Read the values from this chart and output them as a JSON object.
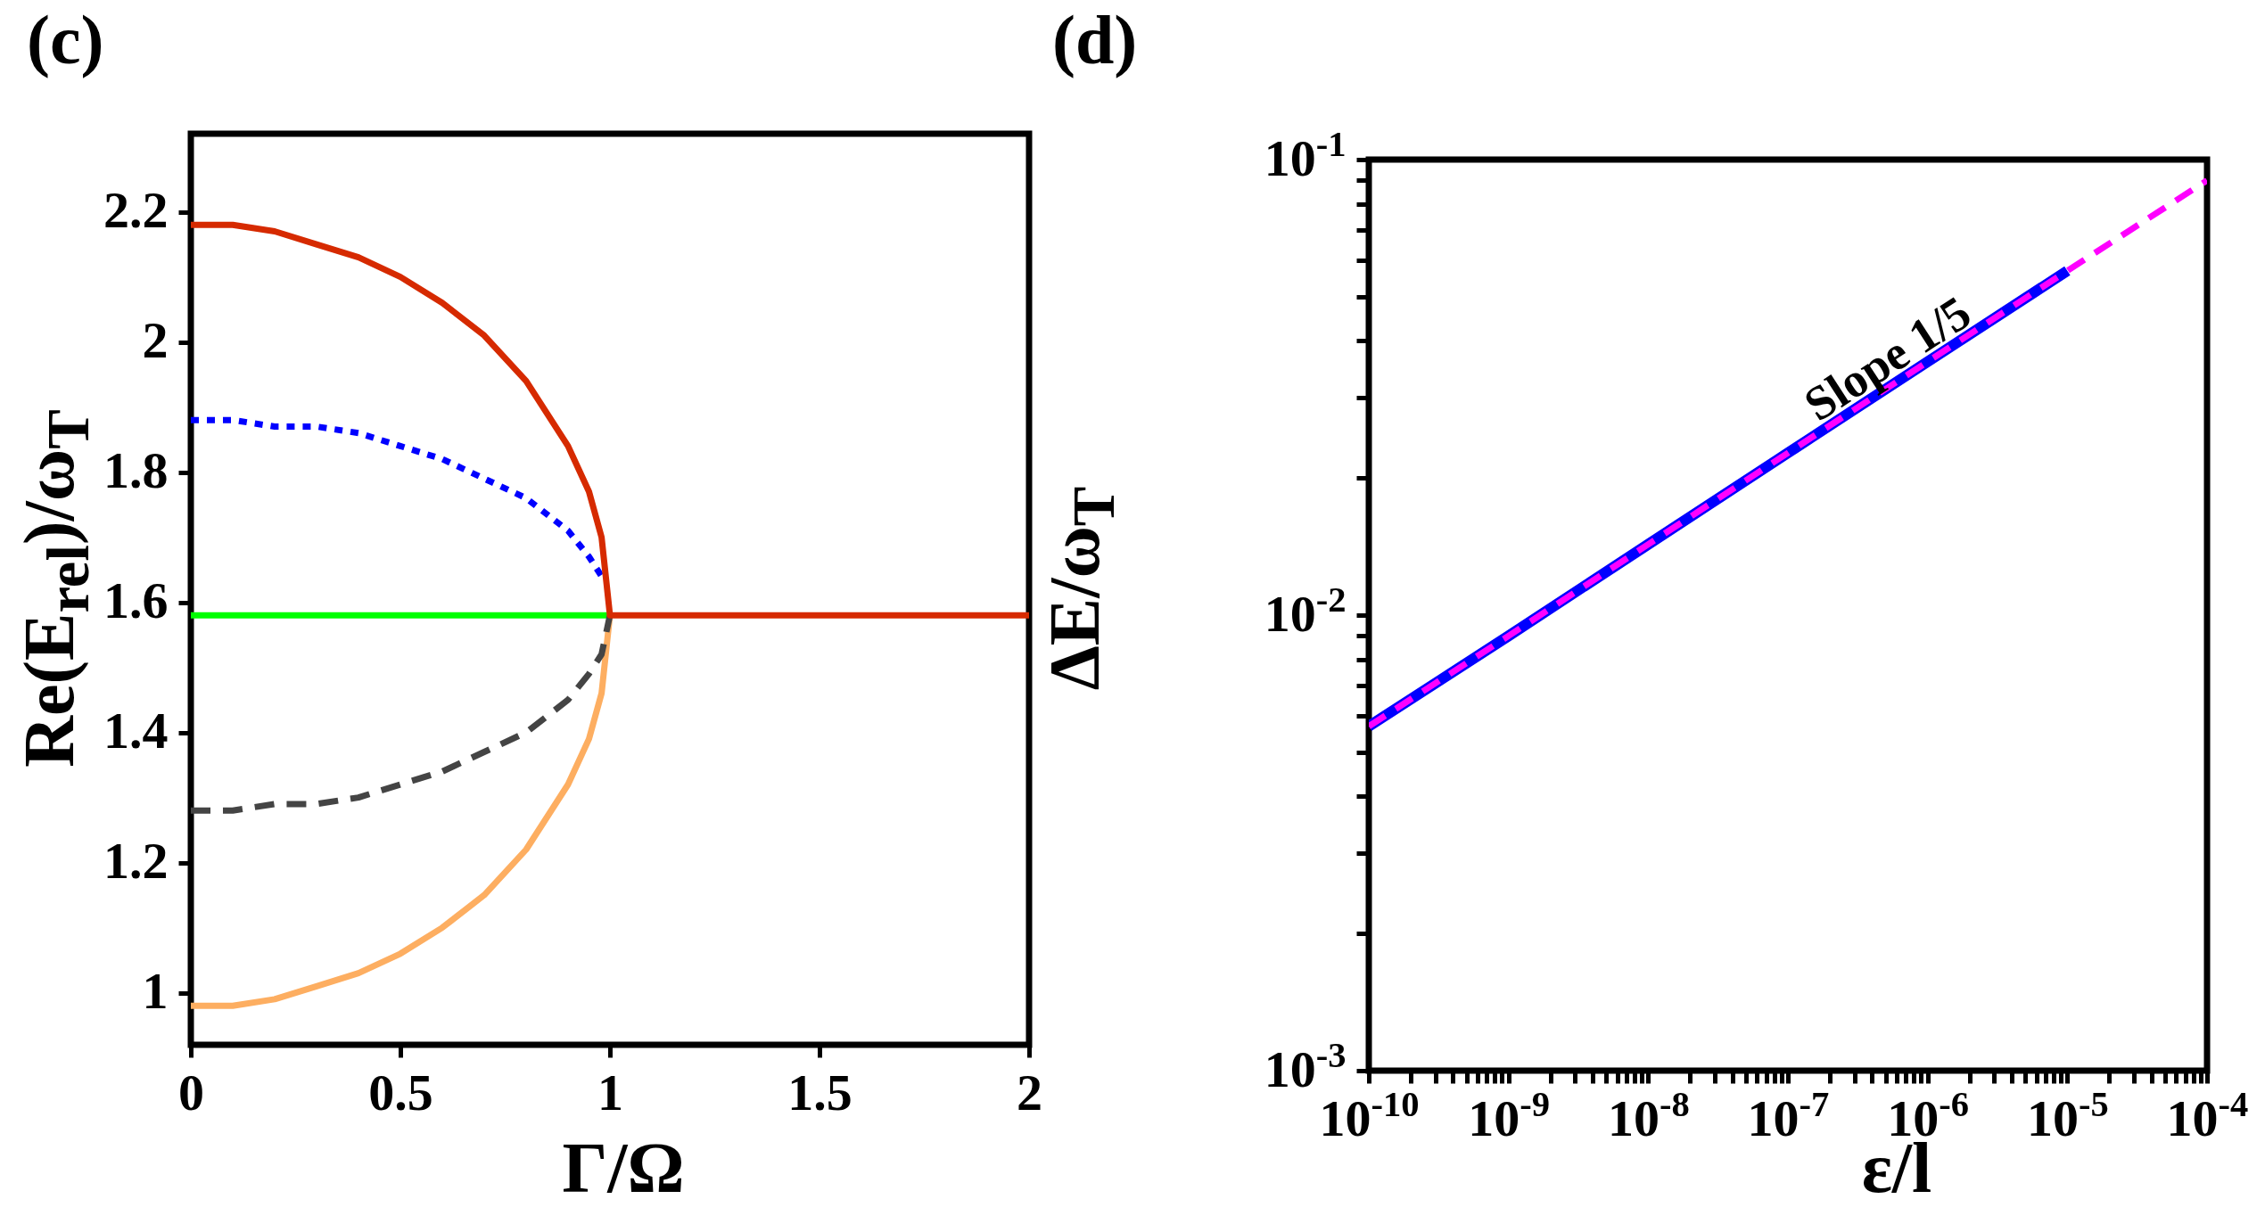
{
  "chart_data": [
    {
      "type": "line",
      "title": "(c)",
      "xlabel": "Γ/Ω",
      "ylabel": "Re(E$_{rel}$)/ω$_{T}$",
      "xlim": [
        0,
        2
      ],
      "ylim": [
        0.92,
        2.32
      ],
      "xticks": [
        0,
        0.5,
        1,
        1.5,
        2
      ],
      "yticks": [
        1,
        1.2,
        1.4,
        1.6,
        1.8,
        2,
        2.2
      ],
      "series": [
        {
          "color": "#00ff00",
          "line_style": "solid",
          "x": [
            0,
            1
          ],
          "values": [
            1.58,
            1.58
          ]
        },
        {
          "color": "#fdae61",
          "line_style": "solid",
          "x": [
            0,
            0.1,
            0.2,
            0.3,
            0.4,
            0.5,
            0.6,
            0.7,
            0.8,
            0.9,
            0.95,
            0.98,
            1
          ],
          "values": [
            0.98,
            0.98,
            0.99,
            1.01,
            1.03,
            1.06,
            1.1,
            1.15,
            1.22,
            1.32,
            1.39,
            1.46,
            1.58
          ]
        },
        {
          "color": "#444444",
          "line_style": "dashed",
          "x": [
            0,
            0.1,
            0.2,
            0.3,
            0.4,
            0.5,
            0.6,
            0.7,
            0.8,
            0.9,
            0.95,
            0.98,
            1
          ],
          "values": [
            1.28,
            1.28,
            1.29,
            1.29,
            1.3,
            1.32,
            1.34,
            1.37,
            1.4,
            1.45,
            1.49,
            1.52,
            1.58
          ]
        },
        {
          "color": "#0000ff",
          "line_style": "dotted",
          "x": [
            0,
            0.1,
            0.2,
            0.3,
            0.4,
            0.5,
            0.6,
            0.7,
            0.8,
            0.9,
            0.95,
            0.98
          ],
          "values": [
            1.88,
            1.88,
            1.87,
            1.87,
            1.86,
            1.84,
            1.82,
            1.79,
            1.76,
            1.71,
            1.67,
            1.64
          ]
        },
        {
          "color": "#d62a00",
          "line_style": "solid",
          "x": [
            0,
            0.1,
            0.2,
            0.3,
            0.4,
            0.5,
            0.6,
            0.7,
            0.8,
            0.9,
            0.95,
            0.98,
            1,
            2
          ],
          "values": [
            2.18,
            2.18,
            2.17,
            2.15,
            2.13,
            2.1,
            2.06,
            2.01,
            1.94,
            1.84,
            1.77,
            1.7,
            1.58,
            1.58
          ]
        }
      ]
    },
    {
      "type": "line",
      "title": "(d)",
      "xlabel": "ε/l",
      "ylabel": "ΔE/ω$_{T}$",
      "log": "xy",
      "xlim": [
        1e-10,
        0.0001
      ],
      "ylim": [
        0.001,
        0.1
      ],
      "xticks": [
        {
          "value": 1e-10,
          "label": "10$^{-10}$"
        },
        {
          "value": 2e-10,
          "label": null
        },
        {
          "value": 3e-10,
          "label": null
        },
        {
          "value": 4e-10,
          "label": null
        },
        {
          "value": 5e-10,
          "label": null
        },
        {
          "value": 6e-10,
          "label": null
        },
        {
          "value": 7e-10,
          "label": null
        },
        {
          "value": 8e-10,
          "label": null
        },
        {
          "value": 9e-10,
          "label": null
        },
        {
          "value": 1e-09,
          "label": "10$^{-9}$"
        },
        {
          "value": 2e-09,
          "label": null
        },
        {
          "value": 3e-09,
          "label": null
        },
        {
          "value": 4e-09,
          "label": null
        },
        {
          "value": 5e-09,
          "label": null
        },
        {
          "value": 6e-09,
          "label": null
        },
        {
          "value": 7e-09,
          "label": null
        },
        {
          "value": 8e-09,
          "label": null
        },
        {
          "value": 9e-09,
          "label": null
        },
        {
          "value": 1e-08,
          "label": "10$^{-8}$"
        },
        {
          "value": 2e-08,
          "label": null
        },
        {
          "value": 3e-08,
          "label": null
        },
        {
          "value": 4e-08,
          "label": null
        },
        {
          "value": 5e-08,
          "label": null
        },
        {
          "value": 6e-08,
          "label": null
        },
        {
          "value": 7e-08,
          "label": null
        },
        {
          "value": 8e-08,
          "label": null
        },
        {
          "value": 9e-08,
          "label": null
        },
        {
          "value": 1e-07,
          "label": "10$^{-7}$"
        },
        {
          "value": 2e-07,
          "label": null
        },
        {
          "value": 3e-07,
          "label": null
        },
        {
          "value": 4e-07,
          "label": null
        },
        {
          "value": 5e-07,
          "label": null
        },
        {
          "value": 6e-07,
          "label": null
        },
        {
          "value": 7e-07,
          "label": null
        },
        {
          "value": 8e-07,
          "label": null
        },
        {
          "value": 9e-07,
          "label": null
        },
        {
          "value": 1e-06,
          "label": "10$^{-6}$"
        },
        {
          "value": 2e-06,
          "label": null
        },
        {
          "value": 3e-06,
          "label": null
        },
        {
          "value": 4e-06,
          "label": null
        },
        {
          "value": 5e-06,
          "label": null
        },
        {
          "value": 6e-06,
          "label": null
        },
        {
          "value": 7e-06,
          "label": null
        },
        {
          "value": 8e-06,
          "label": null
        },
        {
          "value": 9e-06,
          "label": null
        },
        {
          "value": 1e-05,
          "label": "10$^{-5}$"
        },
        {
          "value": 2e-05,
          "label": null
        },
        {
          "value": 3e-05,
          "label": null
        },
        {
          "value": 4e-05,
          "label": null
        },
        {
          "value": 5e-05,
          "label": null
        },
        {
          "value": 6e-05,
          "label": null
        },
        {
          "value": 7e-05,
          "label": null
        },
        {
          "value": 8e-05,
          "label": null
        },
        {
          "value": 9e-05,
          "label": null
        },
        {
          "value": 0.0001,
          "label": "10$^{-4}$"
        }
      ],
      "yticks": [
        {
          "value": 0.001,
          "label": "10$^{-3}$"
        },
        {
          "value": 0.002,
          "label": null
        },
        {
          "value": 0.003,
          "label": null
        },
        {
          "value": 0.004,
          "label": null
        },
        {
          "value": 0.005,
          "label": null
        },
        {
          "value": 0.006,
          "label": null
        },
        {
          "value": 0.007,
          "label": null
        },
        {
          "value": 0.008,
          "label": null
        },
        {
          "value": 0.009,
          "label": null
        },
        {
          "value": 0.01,
          "label": "10$^{-2}$"
        },
        {
          "value": 0.02,
          "label": null
        },
        {
          "value": 0.03,
          "label": null
        },
        {
          "value": 0.04,
          "label": null
        },
        {
          "value": 0.05,
          "label": null
        },
        {
          "value": 0.06,
          "label": null
        },
        {
          "value": 0.07,
          "label": null
        },
        {
          "value": 0.08,
          "label": null
        },
        {
          "value": 0.09,
          "label": null
        },
        {
          "value": 0.1,
          "label": "10$^{-1}$"
        }
      ],
      "series": [
        {
          "color": "#0000ff",
          "line_style": "solid",
          "x": [
            1e-10,
            1e-09,
            1e-08,
            1e-07,
            1e-06,
            1e-05
          ],
          "values": [
            0.0057,
            0.009,
            0.0143,
            0.0227,
            0.036,
            0.057
          ]
        },
        {
          "color": "#ff00ff",
          "line_style": "dashed",
          "x": [
            1e-10,
            1e-09,
            1e-08,
            1e-07,
            1e-06,
            1e-05,
            0.0001
          ],
          "values": [
            0.0057,
            0.009,
            0.0143,
            0.0227,
            0.036,
            0.057,
            0.09
          ]
        }
      ],
      "annotations": [
        "Slope 1/5"
      ]
    }
  ]
}
